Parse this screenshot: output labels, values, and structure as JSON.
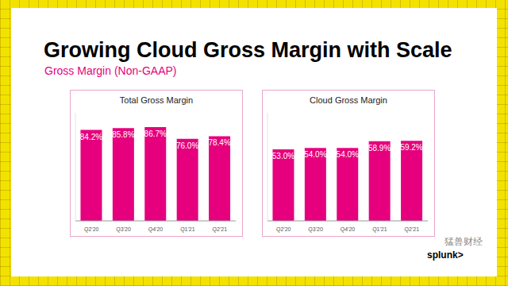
{
  "title": "Growing Cloud Gross Margin with Scale",
  "subtitle": "Gross Margin (Non-GAAP)",
  "logo": "splunk>",
  "watermark": "猛兽财经",
  "chart_data": [
    {
      "type": "bar",
      "title": "Total Gross Margin",
      "categories": [
        "Q2'20",
        "Q3'20",
        "Q4'20",
        "Q1'21",
        "Q2'21"
      ],
      "values": [
        84.2,
        85.8,
        86.7,
        76.0,
        78.4
      ],
      "value_labels": [
        "84.2%",
        "85.8%",
        "86.7%",
        "76.0%",
        "78.4%"
      ],
      "color": "#e6007e",
      "ylim": [
        0,
        100
      ],
      "yticks": [
        0,
        100
      ],
      "grid": false,
      "data_labels": true,
      "tick_labels": "x"
    },
    {
      "type": "bar",
      "title": "Cloud Gross Margin",
      "categories": [
        "Q2'20",
        "Q3'20",
        "Q4'20",
        "Q1'21",
        "Q2'21"
      ],
      "values": [
        53.0,
        54.0,
        54.0,
        58.9,
        59.2
      ],
      "value_labels": [
        "53.0%",
        "54.0%",
        "54.0%",
        "58.9%",
        "59.2%"
      ],
      "color": "#e6007e",
      "ylim": [
        0,
        80
      ],
      "yticks": [
        0,
        80
      ],
      "grid": false,
      "data_labels": true,
      "tick_labels": "x"
    }
  ]
}
